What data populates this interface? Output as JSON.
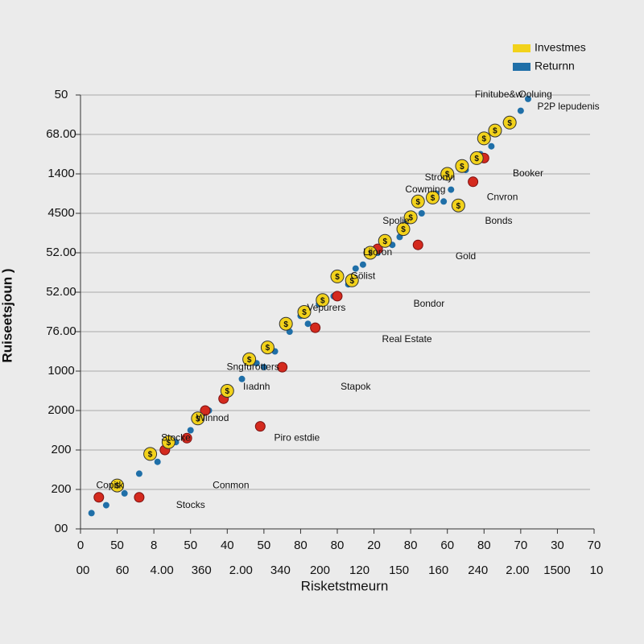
{
  "chart_data": {
    "type": "scatter",
    "xlabel": "Risketstmeurn",
    "ylabel": "Ruiseetsjoun )",
    "xlim": [
      0,
      14
    ],
    "ylim": [
      0,
      11
    ],
    "xticks": [
      {
        "value": 0,
        "label": "0"
      },
      {
        "value": 1,
        "label": "50"
      },
      {
        "value": 2,
        "label": "8"
      },
      {
        "value": 3,
        "label": "50"
      },
      {
        "value": 4,
        "label": "40"
      },
      {
        "value": 5,
        "label": "50"
      },
      {
        "value": 6,
        "label": "80"
      },
      {
        "value": 7,
        "label": "80"
      },
      {
        "value": 8,
        "label": "20"
      },
      {
        "value": 9,
        "label": "80"
      },
      {
        "value": 10,
        "label": "60"
      },
      {
        "value": 11,
        "label": "80"
      },
      {
        "value": 12,
        "label": "70"
      },
      {
        "value": 13,
        "label": "30"
      },
      {
        "value": 14,
        "label": "70"
      }
    ],
    "xticks_secondary": [
      "00",
      "60",
      "4.00",
      "360",
      "2.00",
      "340",
      "200",
      "120",
      "150",
      "160",
      "240",
      "2.00",
      "1500",
      "10"
    ],
    "yticks": [
      {
        "value": 0,
        "label": "00"
      },
      {
        "value": 1,
        "label": "200"
      },
      {
        "value": 2,
        "label": "200"
      },
      {
        "value": 3,
        "label": "2000"
      },
      {
        "value": 4,
        "label": "1000"
      },
      {
        "value": 5,
        "label": "76.00"
      },
      {
        "value": 6,
        "label": "52.00"
      },
      {
        "value": 7,
        "label": "52.00"
      },
      {
        "value": 8,
        "label": "4500"
      },
      {
        "value": 9,
        "label": "1400"
      },
      {
        "value": 10,
        "label": "68.00"
      },
      {
        "value": 11,
        "label": "50"
      }
    ],
    "grid": true,
    "legend": "top-right",
    "series": [
      {
        "name": "Investmes",
        "color": "#f2d21b",
        "marker_symbol": "$",
        "x": [
          1,
          1.9,
          2.4,
          3.2,
          4,
          4.6,
          5.1,
          5.6,
          6.1,
          6.6,
          7.0,
          7.4,
          7.9,
          8.3,
          8.8,
          9.2,
          9.6,
          10.0,
          10.4,
          10.8,
          11.0,
          11.3,
          11.7,
          10.3,
          9.0
        ],
        "values": [
          1.1,
          1.9,
          2.2,
          2.8,
          3.5,
          4.3,
          4.6,
          5.2,
          5.5,
          5.8,
          6.4,
          6.3,
          7.0,
          7.3,
          7.6,
          8.3,
          8.4,
          9.0,
          9.2,
          9.4,
          9.9,
          10.1,
          10.3,
          8.2,
          7.9
        ]
      },
      {
        "name": "Returnn",
        "color": "#1f6fa8",
        "x": [
          0.3,
          0.7,
          1.2,
          1.6,
          2.1,
          2.6,
          3.0,
          3.5,
          3.9,
          4.4,
          4.8,
          5.3,
          5.7,
          6.2,
          6.5,
          6.9,
          7.3,
          7.7,
          8.1,
          8.5,
          8.9,
          9.3,
          9.7,
          10.1,
          10.5,
          10.9,
          11.2,
          11.6,
          12.0,
          12.2,
          6.0,
          7.5,
          8.7,
          5.0,
          9.9
        ],
        "values": [
          0.4,
          0.6,
          0.9,
          1.4,
          1.7,
          2.2,
          2.5,
          3.0,
          3.3,
          3.8,
          4.2,
          4.5,
          5.0,
          5.2,
          5.7,
          5.9,
          6.2,
          6.7,
          7.0,
          7.2,
          7.8,
          8.0,
          8.5,
          8.6,
          9.1,
          9.5,
          9.7,
          10.3,
          10.6,
          10.9,
          5.4,
          6.6,
          7.4,
          4.1,
          8.3
        ]
      },
      {
        "color": "#d42a1e",
        "x": [
          0.5,
          1.6,
          2.3,
          2.9,
          3.4,
          3.9,
          4.9,
          5.5,
          6.4,
          7.0,
          8.1,
          9.2,
          10.7,
          11.0
        ],
        "values": [
          0.8,
          0.8,
          2.0,
          2.3,
          3.0,
          3.3,
          2.6,
          4.1,
          5.1,
          5.9,
          7.1,
          7.2,
          8.8,
          9.4
        ]
      }
    ],
    "annotations": [
      {
        "text": "Finitube&w",
        "x": 11.4,
        "y": 11.0
      },
      {
        "text": "Ooluing",
        "x": 12.4,
        "y": 11.0
      },
      {
        "text": "P2P lepudenis",
        "x": 13.3,
        "y": 10.7
      },
      {
        "text": "Booker",
        "x": 12.2,
        "y": 9.0
      },
      {
        "text": "Stronyı",
        "x": 9.8,
        "y": 8.9
      },
      {
        "text": "Cowming",
        "x": 9.4,
        "y": 8.6
      },
      {
        "text": "Cnvron",
        "x": 11.5,
        "y": 8.4
      },
      {
        "text": "Spolie",
        "x": 8.6,
        "y": 7.8
      },
      {
        "text": "Bonds",
        "x": 11.4,
        "y": 7.8
      },
      {
        "text": "Liioron",
        "x": 8.1,
        "y": 7.0
      },
      {
        "text": "Gold",
        "x": 10.5,
        "y": 6.9
      },
      {
        "text": "Gölist",
        "x": 7.7,
        "y": 6.4
      },
      {
        "text": "Vepurers",
        "x": 6.7,
        "y": 5.6
      },
      {
        "text": "Bondor",
        "x": 9.5,
        "y": 5.7
      },
      {
        "text": "Real Estate",
        "x": 8.9,
        "y": 4.8
      },
      {
        "text": "Sngfurotters",
        "x": 4.7,
        "y": 4.1
      },
      {
        "text": "Iıadnh",
        "x": 4.8,
        "y": 3.6
      },
      {
        "text": "Stapok",
        "x": 7.5,
        "y": 3.6
      },
      {
        "text": "Winnod",
        "x": 3.6,
        "y": 2.8
      },
      {
        "text": "Stocke",
        "x": 2.6,
        "y": 2.3
      },
      {
        "text": "Piro estdie",
        "x": 5.9,
        "y": 2.3
      },
      {
        "text": "Conmon",
        "x": 4.1,
        "y": 1.1
      },
      {
        "text": "Copitk",
        "x": 0.8,
        "y": 1.1
      },
      {
        "text": "Stocks",
        "x": 3.0,
        "y": 0.6
      }
    ]
  }
}
